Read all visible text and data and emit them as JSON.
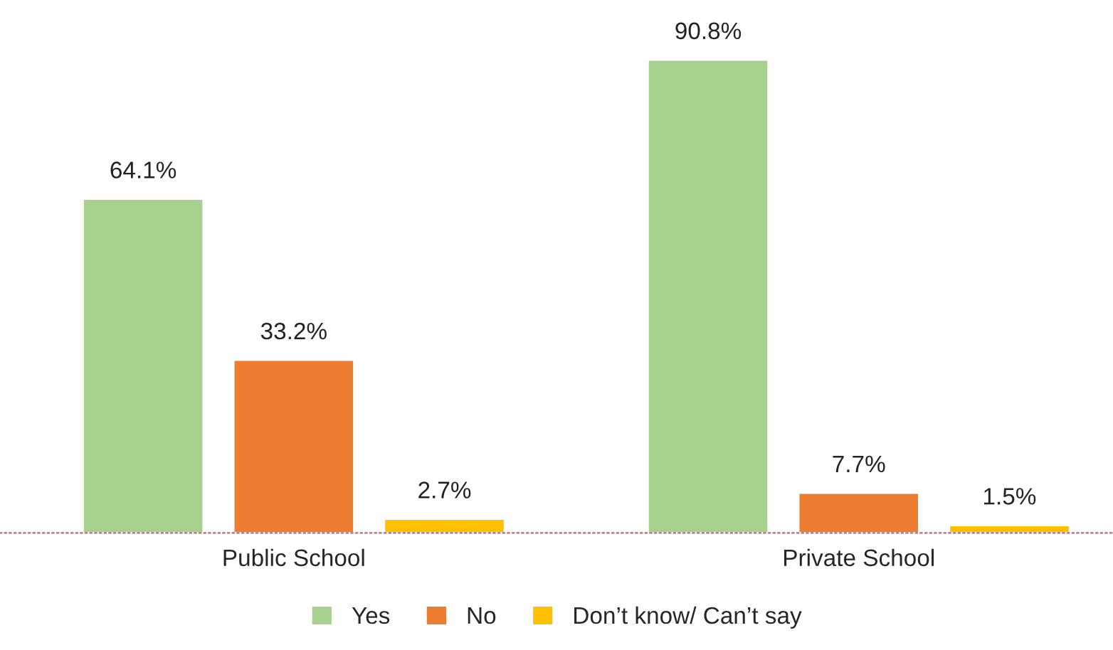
{
  "chart_data": {
    "type": "bar",
    "categories": [
      "Public School",
      "Private School"
    ],
    "series": [
      {
        "name": "Yes",
        "color": "#a9d18e",
        "values": [
          64.1,
          90.8
        ],
        "value_labels": [
          "64.1%",
          "90.8%"
        ]
      },
      {
        "name": "No",
        "color": "#ed7d31",
        "values": [
          33.2,
          7.7
        ],
        "value_labels": [
          "33.2%",
          "7.7%"
        ]
      },
      {
        "name": "Don’t know/ Can’t say",
        "color": "#ffc000",
        "values": [
          2.7,
          1.5
        ],
        "value_labels": [
          "2.7%",
          "1.5%"
        ]
      }
    ],
    "legend": "bottom",
    "grid": false
  }
}
